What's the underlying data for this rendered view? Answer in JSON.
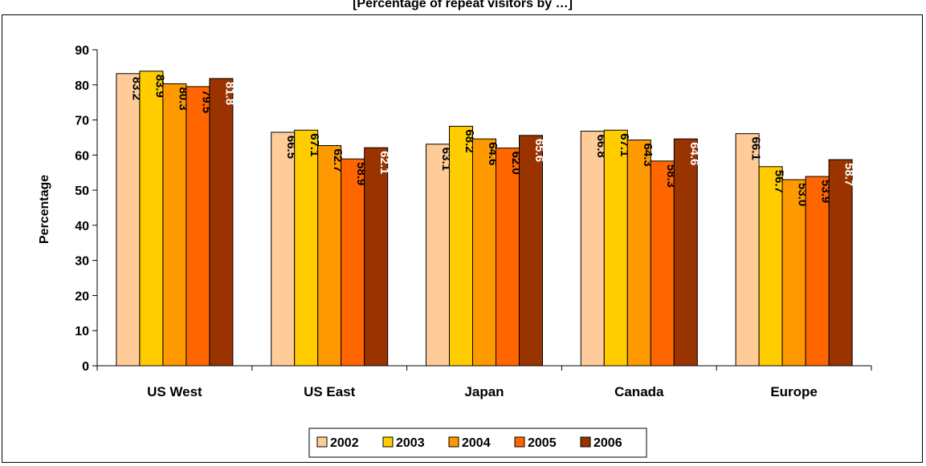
{
  "chart_data": {
    "type": "bar",
    "title": "[Percentage of repeat visitors by …]",
    "xlabel": "",
    "ylabel": "Percentage",
    "ylim": [
      0,
      90
    ],
    "yticks": [
      0,
      10,
      20,
      30,
      40,
      50,
      60,
      70,
      80,
      90
    ],
    "grid": false,
    "legend_position": "bottom",
    "categories": [
      "US West",
      "US East",
      "Japan",
      "Canada",
      "Europe"
    ],
    "series": [
      {
        "name": "2002",
        "color": "#FFCC99",
        "values": [
          83.2,
          66.5,
          63.1,
          66.8,
          66.1
        ]
      },
      {
        "name": "2003",
        "color": "#FFCC00",
        "values": [
          83.9,
          67.1,
          68.2,
          67.1,
          56.7
        ]
      },
      {
        "name": "2004",
        "color": "#FF9900",
        "values": [
          80.3,
          62.7,
          64.6,
          64.3,
          53.0
        ]
      },
      {
        "name": "2005",
        "color": "#FF6600",
        "values": [
          79.5,
          58.9,
          62.0,
          58.3,
          53.9
        ]
      },
      {
        "name": "2006",
        "color": "#993300",
        "values": [
          81.8,
          62.1,
          65.6,
          64.6,
          58.7
        ]
      }
    ],
    "label_colors": [
      "#000000",
      "#000000",
      "#000000",
      "#000000",
      "#FFFFFF"
    ]
  }
}
